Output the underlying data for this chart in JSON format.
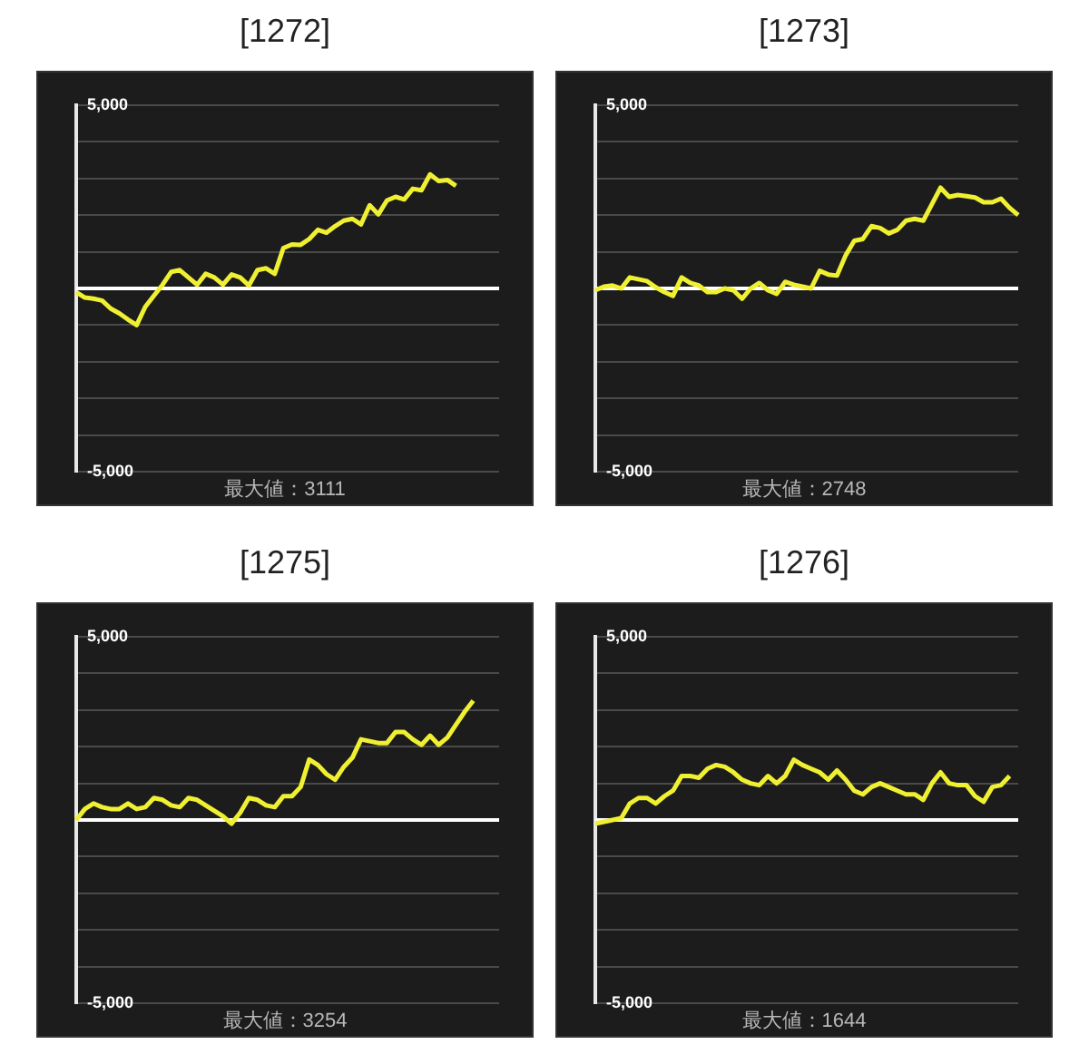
{
  "chart_data": [
    {
      "type": "line",
      "title": "[1272]",
      "categories": [
        null,
        null,
        null,
        null,
        null,
        null,
        null,
        null,
        null,
        null,
        null,
        null,
        null,
        null,
        null,
        null,
        null,
        null,
        null,
        null,
        null,
        null,
        null,
        null,
        null,
        null,
        null,
        null,
        null,
        null,
        null,
        null,
        null,
        null,
        null,
        null,
        null,
        null,
        null,
        null,
        null,
        null,
        null,
        null,
        null,
        null,
        null,
        null,
        null,
        null
      ],
      "series": [
        {
          "color": "#f0f032",
          "values": [
            -100,
            -250,
            -280,
            -330,
            -550,
            -680,
            -850,
            -1000,
            -500,
            -200,
            100,
            450,
            500,
            300,
            100,
            400,
            300,
            100,
            380,
            300,
            80,
            500,
            550,
            400,
            1100,
            1200,
            1190,
            1350,
            1600,
            1520,
            1700,
            1850,
            1900,
            1750,
            2270,
            2020,
            2400,
            2500,
            2430,
            2720,
            2680,
            3111,
            2930,
            2960,
            2800,
            null,
            null,
            null,
            null,
            null
          ]
        }
      ],
      "ylim": [
        -5000,
        5000
      ],
      "yticks": [
        {
          "value": -5000,
          "label": "-5,000"
        },
        {
          "value": -4000,
          "label": null
        },
        {
          "value": -3000,
          "label": null
        },
        {
          "value": -2000,
          "label": null
        },
        {
          "value": -1000,
          "label": null
        },
        {
          "value": 0,
          "label": null
        },
        {
          "value": 1000,
          "label": null
        },
        {
          "value": 2000,
          "label": null
        },
        {
          "value": 3000,
          "label": null
        },
        {
          "value": 4000,
          "label": null
        },
        {
          "value": 5000,
          "label": "5,000"
        }
      ],
      "grid": "y",
      "tick_labels": "y",
      "ref_lines": [
        {
          "axis": "y",
          "value": 0,
          "color": "#ffffff"
        }
      ],
      "annotations": [
        "最大値：3111"
      ]
    },
    {
      "type": "line",
      "title": "[1273]",
      "categories": [
        null,
        null,
        null,
        null,
        null,
        null,
        null,
        null,
        null,
        null,
        null,
        null,
        null,
        null,
        null,
        null,
        null,
        null,
        null,
        null,
        null,
        null,
        null,
        null,
        null,
        null,
        null,
        null,
        null,
        null,
        null,
        null,
        null,
        null,
        null,
        null,
        null,
        null,
        null,
        null,
        null,
        null,
        null,
        null,
        null,
        null,
        null,
        null,
        null,
        null
      ],
      "series": [
        {
          "color": "#f0f032",
          "values": [
            -50,
            50,
            80,
            0,
            300,
            250,
            200,
            30,
            -100,
            -200,
            300,
            150,
            80,
            -100,
            -100,
            0,
            -50,
            -280,
            0,
            150,
            -50,
            -150,
            180,
            100,
            50,
            0,
            480,
            380,
            350,
            900,
            1300,
            1350,
            1700,
            1650,
            1500,
            1600,
            1850,
            1900,
            1850,
            2300,
            2748,
            2500,
            2550,
            2520,
            2480,
            2350,
            2350,
            2450,
            2200,
            2000
          ]
        }
      ],
      "ylim": [
        -5000,
        5000
      ],
      "yticks": [
        {
          "value": -5000,
          "label": "-5,000"
        },
        {
          "value": -4000,
          "label": null
        },
        {
          "value": -3000,
          "label": null
        },
        {
          "value": -2000,
          "label": null
        },
        {
          "value": -1000,
          "label": null
        },
        {
          "value": 0,
          "label": null
        },
        {
          "value": 1000,
          "label": null
        },
        {
          "value": 2000,
          "label": null
        },
        {
          "value": 3000,
          "label": null
        },
        {
          "value": 4000,
          "label": null
        },
        {
          "value": 5000,
          "label": "5,000"
        }
      ],
      "grid": "y",
      "tick_labels": "y",
      "ref_lines": [
        {
          "axis": "y",
          "value": 0,
          "color": "#ffffff"
        }
      ],
      "annotations": [
        "最大値：2748"
      ]
    },
    {
      "type": "line",
      "title": "[1275]",
      "categories": [
        null,
        null,
        null,
        null,
        null,
        null,
        null,
        null,
        null,
        null,
        null,
        null,
        null,
        null,
        null,
        null,
        null,
        null,
        null,
        null,
        null,
        null,
        null,
        null,
        null,
        null,
        null,
        null,
        null,
        null,
        null,
        null,
        null,
        null,
        null,
        null,
        null,
        null,
        null,
        null,
        null,
        null,
        null,
        null,
        null,
        null,
        null,
        null,
        null,
        null
      ],
      "series": [
        {
          "color": "#f0f032",
          "values": [
            0,
            300,
            450,
            350,
            300,
            300,
            450,
            300,
            350,
            600,
            550,
            400,
            350,
            600,
            550,
            400,
            250,
            100,
            -100,
            200,
            600,
            550,
            400,
            350,
            650,
            650,
            900,
            1650,
            1500,
            1250,
            1100,
            1450,
            1700,
            2200,
            2150,
            2100,
            2100,
            2400,
            2400,
            2200,
            2050,
            2300,
            2050,
            2250,
            2600,
            2950,
            3254,
            null,
            null,
            null
          ]
        }
      ],
      "ylim": [
        -5000,
        5000
      ],
      "yticks": [
        {
          "value": -5000,
          "label": "-5,000"
        },
        {
          "value": -4000,
          "label": null
        },
        {
          "value": -3000,
          "label": null
        },
        {
          "value": -2000,
          "label": null
        },
        {
          "value": -1000,
          "label": null
        },
        {
          "value": 0,
          "label": null
        },
        {
          "value": 1000,
          "label": null
        },
        {
          "value": 2000,
          "label": null
        },
        {
          "value": 3000,
          "label": null
        },
        {
          "value": 4000,
          "label": null
        },
        {
          "value": 5000,
          "label": "5,000"
        }
      ],
      "grid": "y",
      "tick_labels": "y",
      "ref_lines": [
        {
          "axis": "y",
          "value": 0,
          "color": "#ffffff"
        }
      ],
      "annotations": [
        "最大値：3254"
      ]
    },
    {
      "type": "line",
      "title": "[1276]",
      "categories": [
        null,
        null,
        null,
        null,
        null,
        null,
        null,
        null,
        null,
        null,
        null,
        null,
        null,
        null,
        null,
        null,
        null,
        null,
        null,
        null,
        null,
        null,
        null,
        null,
        null,
        null,
        null,
        null,
        null,
        null,
        null,
        null,
        null,
        null,
        null,
        null,
        null,
        null,
        null,
        null,
        null,
        null,
        null,
        null,
        null,
        null,
        null,
        null,
        null,
        null
      ],
      "series": [
        {
          "color": "#f0f032",
          "values": [
            -100,
            -50,
            0,
            50,
            450,
            600,
            600,
            450,
            650,
            800,
            1200,
            1200,
            1150,
            1400,
            1500,
            1450,
            1300,
            1100,
            1000,
            950,
            1200,
            1000,
            1200,
            1644,
            1500,
            1400,
            1300,
            1100,
            1350,
            1100,
            800,
            700,
            900,
            1000,
            900,
            800,
            700,
            700,
            550,
            1000,
            1300,
            1000,
            950,
            950,
            650,
            500,
            900,
            950,
            1200,
            null
          ]
        }
      ],
      "ylim": [
        -5000,
        5000
      ],
      "yticks": [
        {
          "value": -5000,
          "label": "-5,000"
        },
        {
          "value": -4000,
          "label": null
        },
        {
          "value": -3000,
          "label": null
        },
        {
          "value": -2000,
          "label": null
        },
        {
          "value": -1000,
          "label": null
        },
        {
          "value": 0,
          "label": null
        },
        {
          "value": 1000,
          "label": null
        },
        {
          "value": 2000,
          "label": null
        },
        {
          "value": 3000,
          "label": null
        },
        {
          "value": 4000,
          "label": null
        },
        {
          "value": 5000,
          "label": "5,000"
        }
      ],
      "grid": "y",
      "tick_labels": "y",
      "ref_lines": [
        {
          "axis": "y",
          "value": 0,
          "color": "#ffffff"
        }
      ],
      "annotations": [
        "最大値：1644"
      ]
    }
  ]
}
